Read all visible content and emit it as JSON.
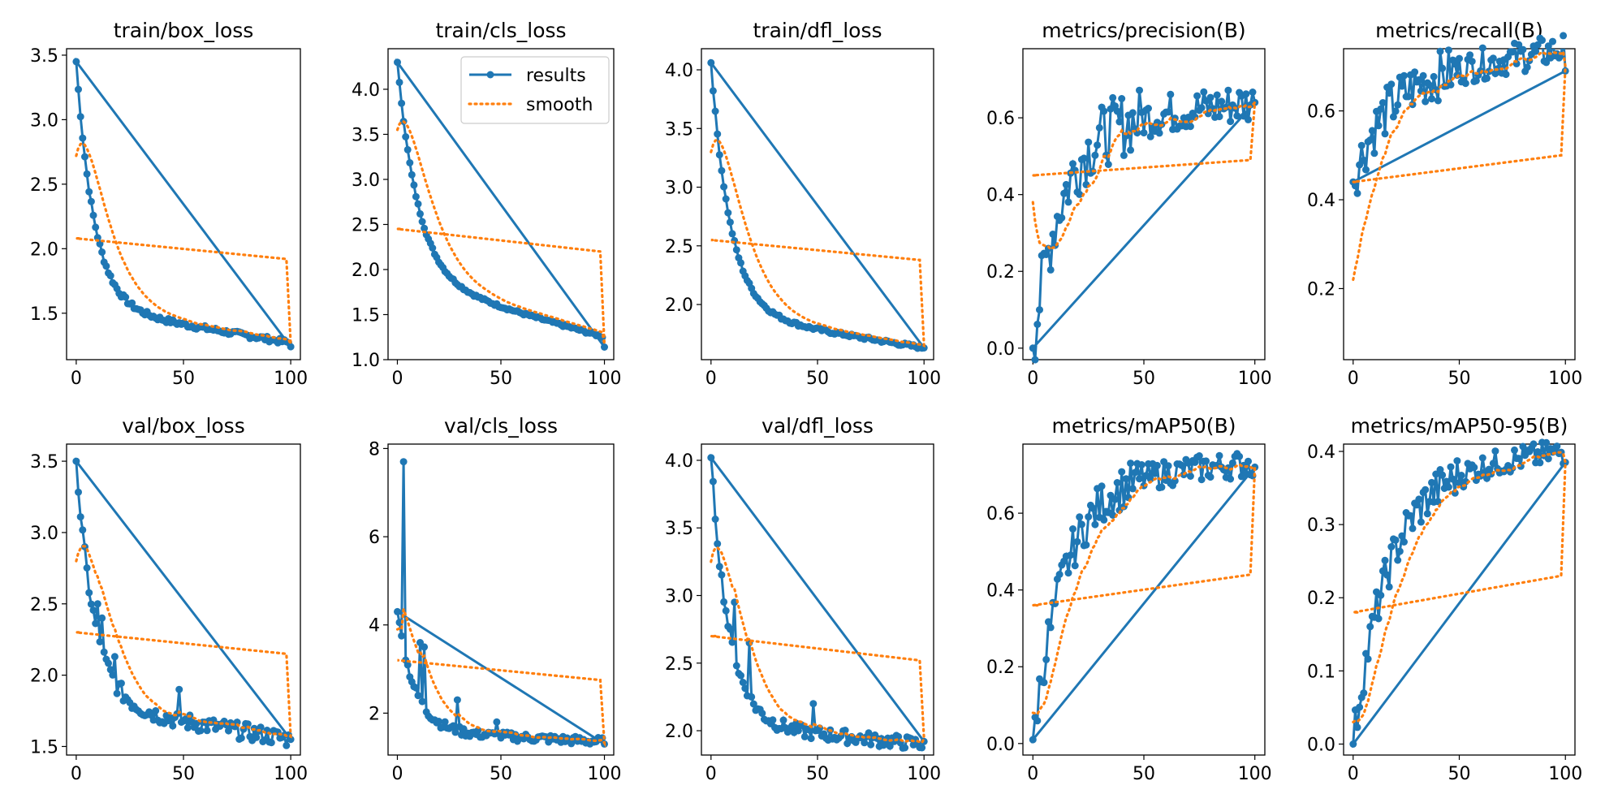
{
  "colors": {
    "results": "#1f77b4",
    "smooth": "#ff7f0e"
  },
  "chart_data": [
    {
      "type": "line",
      "title": "train/box_loss",
      "x": [
        0,
        100
      ],
      "yticks": [
        1.5,
        2.0,
        2.5,
        3.0,
        3.5
      ],
      "ylim": [
        1.14,
        3.55
      ],
      "xlim": [
        -4.5,
        104.5
      ],
      "series": [
        {
          "name": "results",
          "start": 3.45,
          "end": 1.24,
          "k": 0.12,
          "asym": 1.55,
          "drop": 0.0028,
          "noise": 0.02,
          "spikes": []
        },
        {
          "name": "smooth",
          "values_start": 2.72,
          "values_end": 1.26,
          "return_from": 1.92,
          "return_to": 2.08
        }
      ]
    },
    {
      "type": "line",
      "title": "train/cls_loss",
      "x": [
        0,
        100
      ],
      "yticks": [
        1.0,
        1.5,
        2.0,
        2.5,
        3.0,
        3.5,
        4.0
      ],
      "ylim": [
        1.0,
        4.45
      ],
      "xlim": [
        -4.5,
        104.5
      ],
      "series": [
        {
          "name": "results",
          "start": 4.3,
          "end": 1.14,
          "k": 0.1,
          "asym": 1.9,
          "drop": 0.0065,
          "noise": 0.015,
          "spikes": []
        },
        {
          "name": "smooth",
          "values_start": 3.55,
          "values_end": 1.17,
          "return_from": 2.2,
          "return_to": 2.45
        }
      ]
    },
    {
      "type": "line",
      "title": "train/dfl_loss",
      "x": [
        0,
        100
      ],
      "yticks": [
        2.0,
        2.5,
        3.0,
        3.5,
        4.0
      ],
      "ylim": [
        1.53,
        4.18
      ],
      "xlim": [
        -4.5,
        104.5
      ],
      "series": [
        {
          "name": "results",
          "start": 4.06,
          "end": 1.63,
          "k": 0.11,
          "asym": 1.93,
          "drop": 0.003,
          "noise": 0.015,
          "spikes": []
        },
        {
          "name": "smooth",
          "values_start": 3.3,
          "values_end": 1.65,
          "return_from": 2.38,
          "return_to": 2.55
        }
      ]
    },
    {
      "type": "line",
      "title": "metrics/precision(B)",
      "x": [
        0,
        100
      ],
      "yticks": [
        0.0,
        0.2,
        0.4,
        0.6
      ],
      "ylim": [
        -0.03,
        0.78
      ],
      "xlim": [
        -4.5,
        104.5
      ],
      "series": [
        {
          "name": "results",
          "start": 0.0,
          "end": 0.64,
          "rise": true,
          "k": 0.08,
          "asym": 0.58,
          "drop": 0.0006,
          "noise": 0.06,
          "spikes": []
        },
        {
          "name": "smooth",
          "values_start": 0.38,
          "values_end": 0.64,
          "return_from": 0.49,
          "return_to": 0.45
        }
      ]
    },
    {
      "type": "line",
      "title": "metrics/recall(B)",
      "x": [
        0,
        100
      ],
      "yticks": [
        0.2,
        0.4,
        0.6
      ],
      "ylim": [
        0.04,
        0.74
      ],
      "xlim": [
        -4.5,
        104.5
      ],
      "series": [
        {
          "name": "results",
          "start": 0.44,
          "end": 0.69,
          "rise": true,
          "k": 0.07,
          "asym": 0.66,
          "drop": 0.0008,
          "noise": 0.04,
          "spikes": []
        },
        {
          "name": "smooth",
          "values_start": 0.22,
          "values_end": 0.7,
          "return_from": 0.5,
          "return_to": 0.44
        }
      ]
    },
    {
      "type": "line",
      "title": "val/box_loss",
      "x": [
        0,
        100
      ],
      "yticks": [
        1.5,
        2.0,
        2.5,
        3.0,
        3.5
      ],
      "ylim": [
        1.44,
        3.62
      ],
      "xlim": [
        -4.5,
        104.5
      ],
      "series": [
        {
          "name": "results",
          "start": 3.5,
          "end": 1.55,
          "k": 0.12,
          "asym": 1.8,
          "drop": 0.0025,
          "noise": 0.06,
          "spikes": [
            [
              10,
              2.5
            ],
            [
              12,
              2.4
            ],
            [
              18,
              2.13
            ],
            [
              48,
              1.9
            ]
          ]
        },
        {
          "name": "smooth",
          "values_start": 2.8,
          "values_end": 1.57,
          "return_from": 2.15,
          "return_to": 2.3
        }
      ]
    },
    {
      "type": "line",
      "title": "val/cls_loss",
      "x": [
        0,
        100
      ],
      "yticks": [
        2,
        4,
        6,
        8
      ],
      "ylim": [
        1.05,
        8.1
      ],
      "xlim": [
        -4.5,
        104.5
      ],
      "series": [
        {
          "name": "results",
          "start": 4.3,
          "end": 1.3,
          "k": 0.12,
          "asym": 1.6,
          "drop": 0.0025,
          "noise": 0.1,
          "spikes": [
            [
              3,
              7.7
            ],
            [
              11,
              3.6
            ],
            [
              13,
              3.5
            ],
            [
              29,
              2.3
            ],
            [
              48,
              1.8
            ]
          ]
        },
        {
          "name": "smooth",
          "values_start": 3.9,
          "values_end": 1.32,
          "return_from": 2.75,
          "return_to": 3.2
        }
      ]
    },
    {
      "type": "line",
      "title": "val/dfl_loss",
      "x": [
        0,
        100
      ],
      "yticks": [
        2.0,
        2.5,
        3.0,
        3.5,
        4.0
      ],
      "ylim": [
        1.82,
        4.12
      ],
      "xlim": [
        -4.5,
        104.5
      ],
      "series": [
        {
          "name": "results",
          "start": 4.02,
          "end": 1.92,
          "k": 0.12,
          "asym": 2.05,
          "drop": 0.0015,
          "noise": 0.05,
          "spikes": [
            [
              11,
              2.95
            ],
            [
              18,
              2.65
            ],
            [
              48,
              2.2
            ]
          ]
        },
        {
          "name": "smooth",
          "values_start": 3.25,
          "values_end": 1.94,
          "return_from": 2.52,
          "return_to": 2.7
        }
      ]
    },
    {
      "type": "line",
      "title": "metrics/mAP50(B)",
      "x": [
        0,
        100
      ],
      "yticks": [
        0.0,
        0.2,
        0.4,
        0.6
      ],
      "ylim": [
        -0.03,
        0.78
      ],
      "xlim": [
        -4.5,
        104.5
      ],
      "series": [
        {
          "name": "results",
          "start": 0.01,
          "end": 0.72,
          "rise": true,
          "k": 0.07,
          "asym": 0.69,
          "drop": 0.0004,
          "noise": 0.04,
          "spikes": []
        },
        {
          "name": "smooth",
          "values_start": 0.08,
          "values_end": 0.72,
          "return_from": 0.44,
          "return_to": 0.36
        }
      ]
    },
    {
      "type": "line",
      "title": "metrics/mAP50-95(B)",
      "x": [
        0,
        100
      ],
      "yticks": [
        0.0,
        0.1,
        0.2,
        0.3,
        0.4
      ],
      "ylim": [
        -0.015,
        0.41
      ],
      "xlim": [
        -4.5,
        104.5
      ],
      "series": [
        {
          "name": "results",
          "start": 0.0,
          "end": 0.385,
          "rise": true,
          "k": 0.06,
          "asym": 0.37,
          "drop": 0.0003,
          "noise": 0.02,
          "spikes": []
        },
        {
          "name": "smooth",
          "values_start": 0.03,
          "values_end": 0.385,
          "return_from": 0.23,
          "return_to": 0.18
        }
      ]
    }
  ],
  "legend": [
    "results",
    "smooth"
  ]
}
